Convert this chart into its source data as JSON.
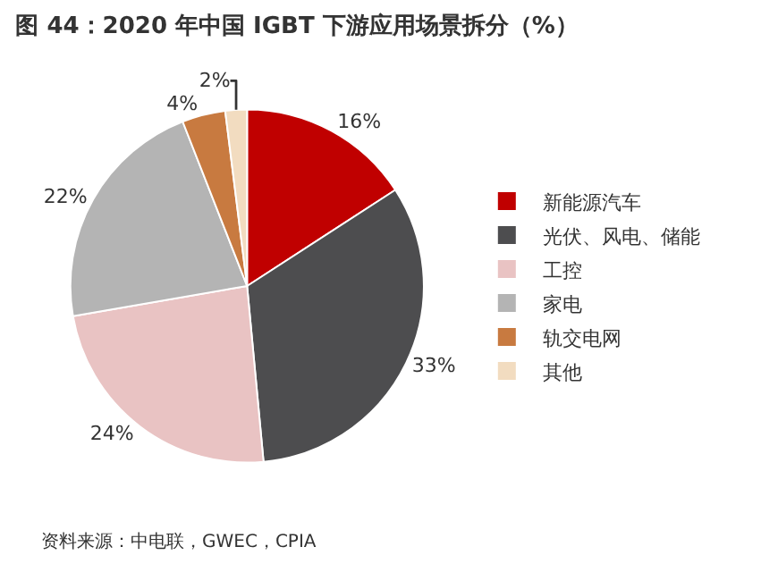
{
  "chart_data": {
    "type": "pie",
    "title": "图 44：2020 年中国 IGBT 下游应用场景拆分（%）",
    "categories": [
      "新能源汽车",
      "光伏、风电、储能",
      "工控",
      "家电",
      "轨交电网",
      "其他"
    ],
    "values": [
      16,
      33,
      24,
      22,
      4,
      2
    ],
    "colors": [
      "#c00000",
      "#4d4d4f",
      "#e9c3c3",
      "#b4b4b4",
      "#c87a40",
      "#f2dcc0"
    ],
    "value_labels": [
      "16%",
      "33%",
      "24%",
      "22%",
      "4%",
      "2%"
    ],
    "legend": "right",
    "annotations": [
      "资料来源：中电联，GWEC，CPIA"
    ]
  }
}
